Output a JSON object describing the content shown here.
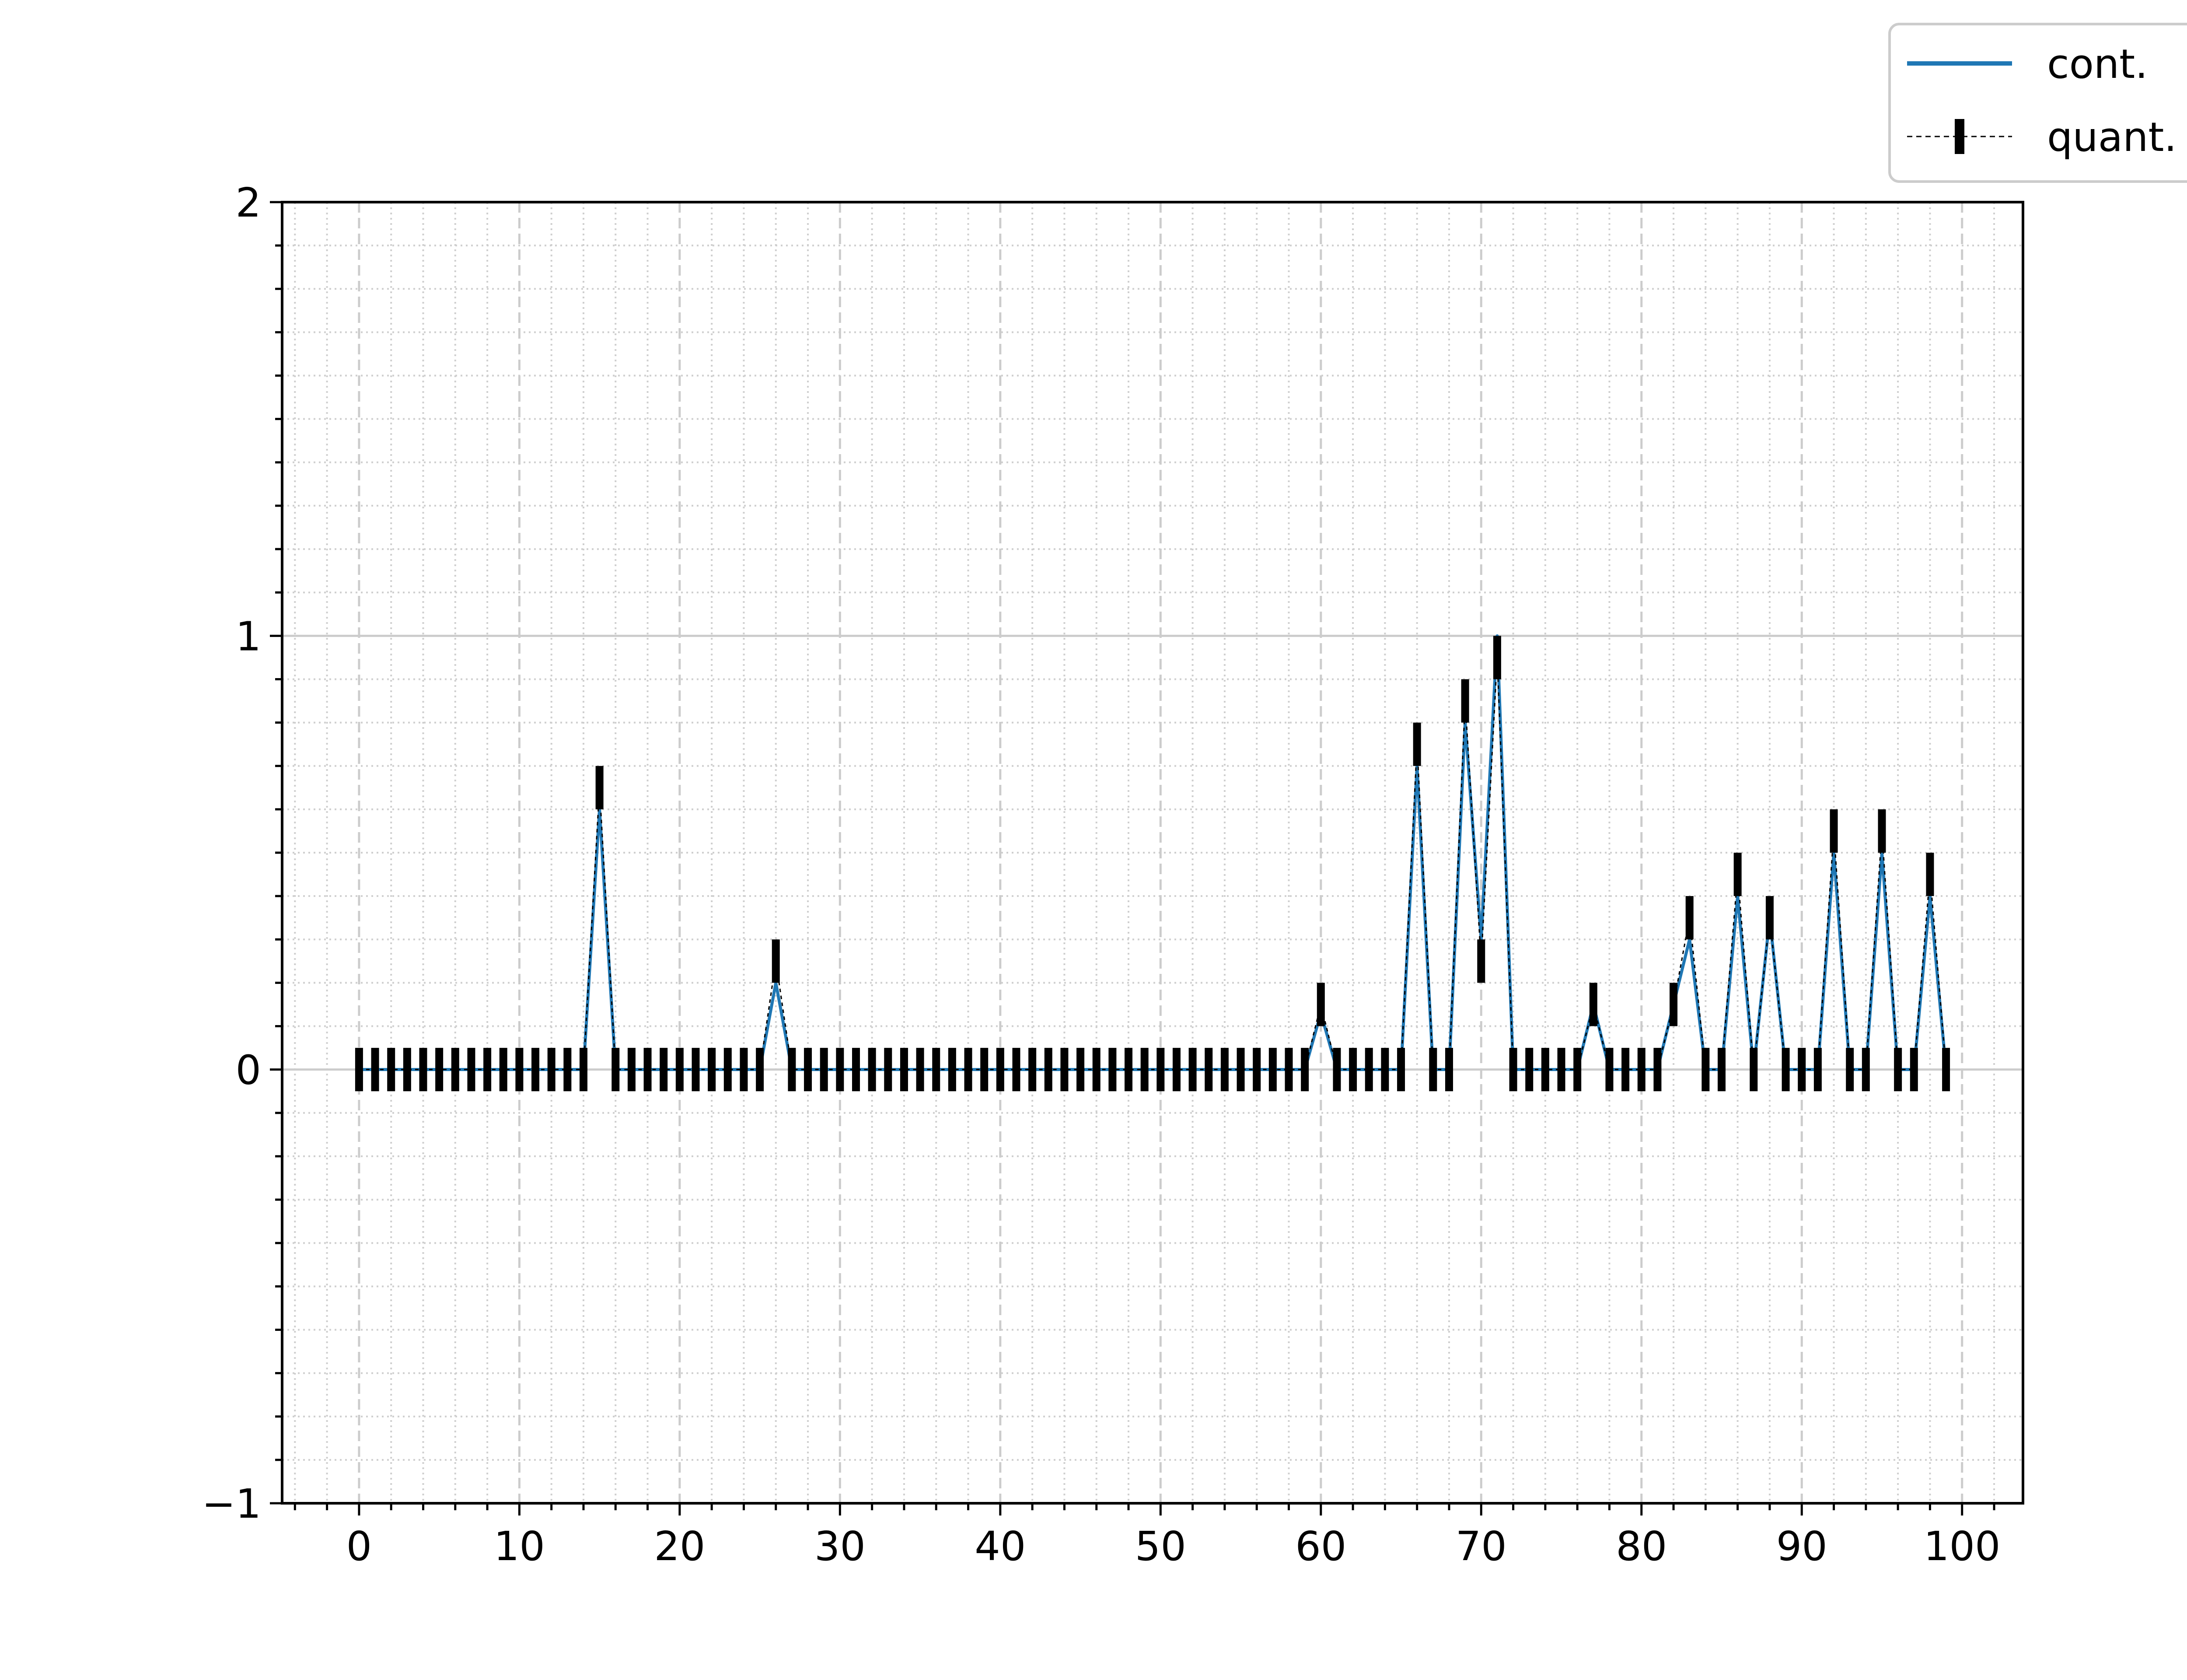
{
  "chart_data": {
    "type": "line",
    "title": "",
    "xlabel": "",
    "ylabel": "",
    "xlim": [
      -4.8,
      103.8
    ],
    "ylim": [
      -1,
      2
    ],
    "x_ticks": [
      "0",
      "10",
      "20",
      "30",
      "40",
      "50",
      "60",
      "70",
      "80",
      "90",
      "100"
    ],
    "y_ticks": [
      "−1",
      "0",
      "1",
      "2"
    ],
    "grid": "major dashed, minor dotted",
    "legend_position": "upper-right-outside",
    "x": [
      0,
      1,
      2,
      3,
      4,
      5,
      6,
      7,
      8,
      9,
      10,
      11,
      12,
      13,
      14,
      15,
      16,
      17,
      18,
      19,
      20,
      21,
      22,
      23,
      24,
      25,
      26,
      27,
      28,
      29,
      30,
      31,
      32,
      33,
      34,
      35,
      36,
      37,
      38,
      39,
      40,
      41,
      42,
      43,
      44,
      45,
      46,
      47,
      48,
      49,
      50,
      51,
      52,
      53,
      54,
      55,
      56,
      57,
      58,
      59,
      60,
      61,
      62,
      63,
      64,
      65,
      66,
      67,
      68,
      69,
      70,
      71,
      72,
      73,
      74,
      75,
      76,
      77,
      78,
      79,
      80,
      81,
      82,
      83,
      84,
      85,
      86,
      87,
      88,
      89,
      90,
      91,
      92,
      93,
      94,
      95,
      96,
      97,
      98,
      99
    ],
    "series": [
      {
        "name": "cont.",
        "color": "#1f77b4",
        "style": "solid",
        "values": [
          0,
          0,
          0,
          0,
          0,
          0,
          0,
          0,
          0,
          0,
          0,
          0,
          0,
          0,
          0,
          0.6,
          0,
          0,
          0,
          0,
          0,
          0,
          0,
          0,
          0,
          0,
          0.2,
          0,
          0,
          0,
          0,
          0,
          0,
          0,
          0,
          0,
          0,
          0,
          0,
          0,
          0,
          0,
          0,
          0,
          0,
          0,
          0,
          0,
          0,
          0,
          0,
          0,
          0,
          0,
          0,
          0,
          0,
          0,
          0,
          0,
          0.13,
          0,
          0,
          0,
          0,
          0,
          0.7,
          0,
          0,
          0.8,
          0.3,
          1.0,
          0,
          0,
          0,
          0,
          0,
          0.15,
          0,
          0,
          0,
          0,
          0.15,
          0.3,
          0,
          0,
          0.4,
          0,
          0.35,
          0,
          0,
          0,
          0.5,
          0,
          0,
          0.5,
          0,
          0,
          0.4,
          0
        ]
      },
      {
        "name": "quant.",
        "color": "#000000",
        "style": "dashed with error bars",
        "error": 0.05,
        "values": [
          0,
          0,
          0,
          0,
          0,
          0,
          0,
          0,
          0,
          0,
          0,
          0,
          0,
          0,
          0,
          0.65,
          0,
          0,
          0,
          0,
          0,
          0,
          0,
          0,
          0,
          0,
          0.25,
          0,
          0,
          0,
          0,
          0,
          0,
          0,
          0,
          0,
          0,
          0,
          0,
          0,
          0,
          0,
          0,
          0,
          0,
          0,
          0,
          0,
          0,
          0,
          0,
          0,
          0,
          0,
          0,
          0,
          0,
          0,
          0,
          0,
          0.15,
          0,
          0,
          0,
          0,
          0,
          0.75,
          0,
          0,
          0.85,
          0.25,
          0.95,
          0,
          0,
          0,
          0,
          0,
          0.15,
          0,
          0,
          0,
          0,
          0.15,
          0.35,
          0,
          0,
          0.45,
          0,
          0.35,
          0,
          0,
          0,
          0.55,
          0,
          0,
          0.55,
          0,
          0,
          0.45,
          0
        ]
      }
    ],
    "legend": [
      {
        "label": "cont.",
        "marker": "line",
        "color": "#1f77b4"
      },
      {
        "label": "quant.",
        "marker": "dashed-errorbar",
        "color": "#000000"
      }
    ]
  }
}
